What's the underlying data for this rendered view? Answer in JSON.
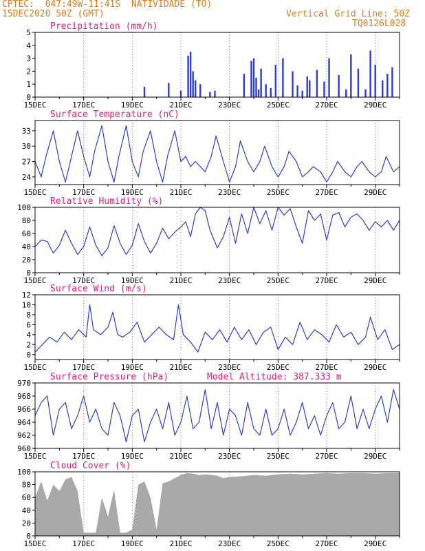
{
  "header": {
    "source": "CPTEC:",
    "coords": "047:49W-11:41S",
    "location": "NATIVIDADE (TO)",
    "run": "15DEC2020 50Z (GMT)",
    "grid_note": "Vertical Grid Line: 50Z",
    "model_code": "TQ0126L028"
  },
  "colors": {
    "header": "#e07b16",
    "title": "#e8197a",
    "line": "#2b3bd6",
    "cloud": "#a9a9a9",
    "frame": "#000000"
  },
  "x_dates": [
    "15DEC",
    "17DEC",
    "19DEC",
    "21DEC",
    "23DEC",
    "25DEC",
    "27DEC",
    "29DEC"
  ],
  "chart_data": [
    {
      "type": "bar",
      "title": "Precipitation (mm/h)",
      "ylim": [
        0,
        5
      ],
      "yticks": [
        "0",
        "1",
        "2",
        "3",
        "4",
        "5"
      ],
      "x_days": [
        4.5,
        5.5,
        6.0,
        6.3,
        6.4,
        6.5,
        6.6,
        6.8,
        7.2,
        7.4,
        8.6,
        8.9,
        9.0,
        9.1,
        9.2,
        9.3,
        9.5,
        9.7,
        9.9,
        10.2,
        10.6,
        10.8,
        11.0,
        11.2,
        11.3,
        11.6,
        11.9,
        12.1,
        12.5,
        12.8,
        13.0,
        13.3,
        13.6,
        13.8,
        14.0,
        14.3,
        14.5,
        14.7
      ],
      "values": [
        0.8,
        1.1,
        0.5,
        3.2,
        3.5,
        2.0,
        1.3,
        1.0,
        0.4,
        0.5,
        1.8,
        2.8,
        3.0,
        1.5,
        0.6,
        2.2,
        1.0,
        0.7,
        2.5,
        3.0,
        2.0,
        0.9,
        0.5,
        1.6,
        1.3,
        2.1,
        1.2,
        3.0,
        1.7,
        0.6,
        3.3,
        2.2,
        0.6,
        3.6,
        2.5,
        1.3,
        1.8,
        2.3
      ]
    },
    {
      "type": "line",
      "title": "Surface Temperature (nC)",
      "ylim": [
        22.5,
        35
      ],
      "yticks": [
        "24",
        "27",
        "30",
        "33"
      ],
      "ytick_values": [
        24,
        27,
        30,
        33
      ],
      "x_days": [
        0,
        0.25,
        0.45,
        0.75,
        1.0,
        1.25,
        1.45,
        1.75,
        2.0,
        2.25,
        2.45,
        2.75,
        3.0,
        3.25,
        3.45,
        3.75,
        4.0,
        4.25,
        4.45,
        4.75,
        5.0,
        5.25,
        5.45,
        5.75,
        6.0,
        6.2,
        6.4,
        6.6,
        6.8,
        7.0,
        7.25,
        7.45,
        7.75,
        8.0,
        8.25,
        8.45,
        8.75,
        9.0,
        9.25,
        9.45,
        9.75,
        10.0,
        10.25,
        10.45,
        10.75,
        11.0,
        11.25,
        11.45,
        11.75,
        12.0,
        12.25,
        12.45,
        12.75,
        13.0,
        13.25,
        13.45,
        13.75,
        14.0,
        14.25,
        14.45,
        14.75,
        15.0
      ],
      "values": [
        27,
        24,
        28,
        33,
        27,
        23,
        27,
        33,
        28,
        24,
        29,
        34,
        27,
        23,
        28,
        34,
        27,
        24,
        29,
        33,
        27,
        23,
        28,
        33,
        27,
        28,
        26,
        27,
        26,
        25,
        28,
        32,
        27,
        23,
        26,
        31,
        27,
        25,
        27,
        30,
        26,
        24,
        26,
        29,
        27,
        24,
        25,
        26,
        25,
        23,
        25,
        27,
        25,
        24,
        26,
        27,
        25,
        24,
        25,
        28,
        25,
        26
      ]
    },
    {
      "type": "line",
      "title": "Relative Humidity (%)",
      "ylim": [
        0,
        100
      ],
      "yticks": [
        "0",
        "20",
        "40",
        "60",
        "80",
        "100"
      ],
      "ytick_values": [
        0,
        20,
        40,
        60,
        80,
        100
      ],
      "x_days": [
        0,
        0.25,
        0.5,
        0.75,
        1.0,
        1.25,
        1.5,
        1.75,
        2.0,
        2.25,
        2.5,
        2.75,
        3.0,
        3.25,
        3.5,
        3.75,
        4.0,
        4.25,
        4.5,
        4.75,
        5.0,
        5.25,
        5.5,
        5.75,
        6.0,
        6.2,
        6.4,
        6.6,
        6.8,
        7.0,
        7.2,
        7.5,
        7.75,
        8.0,
        8.25,
        8.5,
        8.75,
        9.0,
        9.25,
        9.5,
        9.75,
        10.0,
        10.25,
        10.5,
        10.75,
        11.0,
        11.25,
        11.5,
        11.75,
        12.0,
        12.25,
        12.5,
        12.75,
        13.0,
        13.25,
        13.5,
        13.75,
        14.0,
        14.25,
        14.5,
        14.75,
        15.0
      ],
      "values": [
        40,
        50,
        48,
        30,
        42,
        65,
        45,
        28,
        40,
        70,
        42,
        26,
        38,
        72,
        45,
        28,
        42,
        75,
        48,
        30,
        45,
        68,
        52,
        62,
        70,
        78,
        55,
        90,
        100,
        95,
        65,
        38,
        55,
        85,
        45,
        90,
        60,
        100,
        75,
        95,
        65,
        100,
        88,
        98,
        70,
        45,
        95,
        80,
        90,
        50,
        88,
        92,
        70,
        85,
        90,
        80,
        65,
        78,
        70,
        80,
        65,
        80
      ]
    },
    {
      "type": "line",
      "title": "Surface Wind (m/s)",
      "ylim": [
        -1,
        12
      ],
      "yticks": [
        "0",
        "2",
        "4",
        "6",
        "8",
        "10",
        "12"
      ],
      "ytick_values": [
        0,
        2,
        4,
        6,
        8,
        10,
        12
      ],
      "x_days": [
        0,
        0.3,
        0.6,
        0.9,
        1.2,
        1.5,
        1.8,
        2.1,
        2.25,
        2.4,
        2.7,
        3.0,
        3.2,
        3.4,
        3.6,
        3.9,
        4.2,
        4.5,
        4.8,
        5.1,
        5.4,
        5.7,
        5.9,
        6.1,
        6.4,
        6.7,
        7.0,
        7.3,
        7.6,
        7.9,
        8.2,
        8.5,
        8.8,
        9.1,
        9.4,
        9.7,
        10.0,
        10.3,
        10.6,
        10.9,
        11.2,
        11.5,
        11.8,
        12.1,
        12.4,
        12.7,
        13.0,
        13.3,
        13.6,
        13.8,
        14.1,
        14.4,
        14.7,
        15.0
      ],
      "values": [
        0.5,
        2.0,
        3.5,
        2.5,
        4.5,
        3.0,
        5.0,
        3.5,
        10.0,
        5.0,
        4.0,
        5.5,
        8.5,
        4.0,
        3.5,
        4.5,
        6.5,
        2.5,
        4.0,
        5.5,
        4.0,
        3.0,
        10.0,
        4.0,
        2.5,
        0.5,
        4.5,
        3.0,
        5.0,
        2.5,
        5.5,
        3.0,
        5.0,
        2.0,
        4.5,
        5.5,
        1.0,
        3.5,
        2.0,
        6.5,
        3.0,
        5.0,
        4.0,
        2.5,
        6.0,
        3.5,
        4.5,
        2.0,
        3.5,
        7.5,
        3.0,
        5.0,
        1.0,
        2.0
      ]
    },
    {
      "type": "line",
      "title": "Surface Pressure (hPa)",
      "annotation": "Model Altitude: 387.333 m",
      "ylim": [
        960,
        970
      ],
      "yticks": [
        "960",
        "962",
        "964",
        "966",
        "968",
        "970"
      ],
      "ytick_values": [
        960,
        962,
        964,
        966,
        968,
        970
      ],
      "x_days": [
        0,
        0.25,
        0.5,
        0.75,
        1.0,
        1.25,
        1.5,
        1.75,
        2.0,
        2.25,
        2.5,
        2.75,
        3.0,
        3.25,
        3.5,
        3.75,
        4.0,
        4.25,
        4.5,
        4.75,
        5.0,
        5.25,
        5.5,
        5.75,
        6.0,
        6.25,
        6.5,
        6.75,
        7.0,
        7.25,
        7.5,
        7.75,
        8.0,
        8.25,
        8.5,
        8.75,
        9.0,
        9.25,
        9.5,
        9.75,
        10.0,
        10.25,
        10.5,
        10.75,
        11.0,
        11.25,
        11.5,
        11.75,
        12.0,
        12.25,
        12.5,
        12.75,
        13.0,
        13.25,
        13.5,
        13.75,
        14.0,
        14.25,
        14.5,
        14.75,
        15.0
      ],
      "values": [
        965,
        967,
        968,
        962,
        966,
        967,
        963,
        965,
        968,
        964,
        966,
        963,
        962,
        967,
        965,
        961,
        965,
        966,
        961,
        964,
        966,
        963,
        967,
        962,
        964,
        968,
        963,
        964,
        969,
        963,
        967,
        962,
        966,
        965,
        962,
        967,
        963,
        962,
        966,
        962,
        963,
        966,
        962,
        964,
        967,
        963,
        965,
        962,
        965,
        967,
        963,
        964,
        968,
        963,
        966,
        963,
        966,
        968,
        964,
        969,
        966
      ]
    },
    {
      "type": "area",
      "title": "Cloud Cover (%)",
      "ylim": [
        0,
        100
      ],
      "yticks": [
        "0",
        "20",
        "40",
        "60",
        "80",
        "100"
      ],
      "ytick_values": [
        0,
        20,
        40,
        60,
        80,
        100
      ],
      "x_days": [
        0,
        0.25,
        0.5,
        0.75,
        1.0,
        1.25,
        1.5,
        1.75,
        2.0,
        2.25,
        2.5,
        2.75,
        3.0,
        3.25,
        3.5,
        3.75,
        4.0,
        4.25,
        4.5,
        4.75,
        5.0,
        5.25,
        5.5,
        5.75,
        6.0,
        6.25,
        6.5,
        6.75,
        7.0,
        7.25,
        7.5,
        7.75,
        8.0,
        8.5,
        9.0,
        9.5,
        10.0,
        10.5,
        11.0,
        11.5,
        12.0,
        12.5,
        13.0,
        13.5,
        14.0,
        14.5,
        15.0
      ],
      "values": [
        60,
        85,
        55,
        80,
        70,
        88,
        92,
        70,
        5,
        5,
        5,
        60,
        30,
        72,
        5,
        5,
        10,
        80,
        85,
        60,
        10,
        82,
        85,
        90,
        95,
        98,
        97,
        95,
        96,
        95,
        94,
        90,
        92,
        93,
        95,
        94,
        96,
        97,
        96,
        97,
        98,
        97,
        98,
        98,
        97,
        98,
        98
      ]
    }
  ]
}
